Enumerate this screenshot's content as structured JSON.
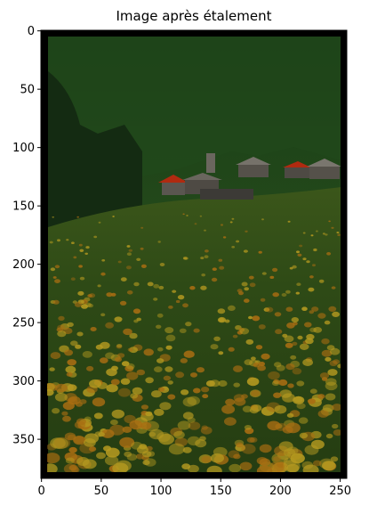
{
  "chart_data": {
    "type": "image",
    "title": "Image après étalement",
    "xlabel": "",
    "ylabel": "",
    "xlim": [
      0,
      255
    ],
    "ylim": [
      383,
      0
    ],
    "x_ticks": [
      0,
      50,
      100,
      150,
      200,
      250
    ],
    "y_ticks": [
      0,
      50,
      100,
      150,
      200,
      250,
      300,
      350
    ],
    "x_tick_labels": [
      "0",
      "50",
      "100",
      "150",
      "200",
      "250"
    ],
    "y_tick_labels": [
      "0",
      "50",
      "100",
      "150",
      "200",
      "250",
      "300",
      "350"
    ],
    "grid": false,
    "legend": "none",
    "image_description_colors": {
      "border": "#000000",
      "forest": "#1f3f1a",
      "forest_dark": "#152a12",
      "meadow": "#2c4a14",
      "flower_yellow": "#b59a20",
      "flower_orange": "#a86d12",
      "roof_red": "#b02a10",
      "house_gray": "#6a665e"
    }
  }
}
